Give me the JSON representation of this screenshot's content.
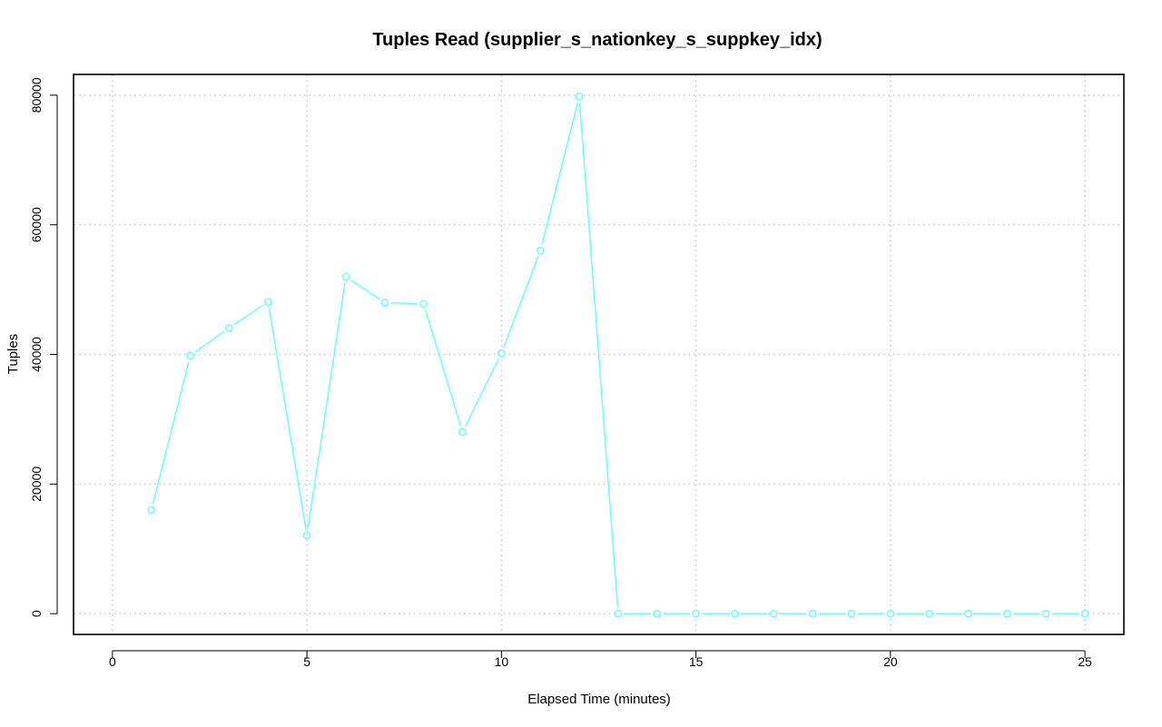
{
  "chart_data": {
    "type": "line",
    "title": "Tuples Read (supplier_s_nationkey_s_suppkey_idx)",
    "xlabel": "Elapsed Time (minutes)",
    "ylabel": "Tuples",
    "xlim": [
      -1,
      26
    ],
    "ylim": [
      -3200,
      83200
    ],
    "x_ticks": [
      0,
      5,
      10,
      15,
      20,
      25
    ],
    "x_tick_labels": [
      "0",
      "5",
      "10",
      "15",
      "20",
      "25"
    ],
    "y_ticks": [
      0,
      20000,
      40000,
      60000,
      80000
    ],
    "y_tick_labels": [
      "0",
      "20000",
      "40000",
      "60000",
      "80000"
    ],
    "grid": true,
    "legend": false,
    "series": [
      {
        "color": "#66ffff",
        "marker": "open-circle",
        "x": [
          1,
          2,
          3,
          4,
          5,
          6,
          7,
          8,
          9,
          10,
          11,
          12,
          13,
          14,
          15,
          16,
          17,
          18,
          19,
          20,
          21,
          22,
          23,
          24,
          25
        ],
        "values": [
          16000,
          39800,
          44100,
          48100,
          12100,
          52000,
          48000,
          47800,
          28000,
          40200,
          56000,
          79800,
          0,
          0,
          0,
          0,
          0,
          0,
          0,
          0,
          0,
          0,
          0,
          0,
          0
        ]
      }
    ]
  }
}
